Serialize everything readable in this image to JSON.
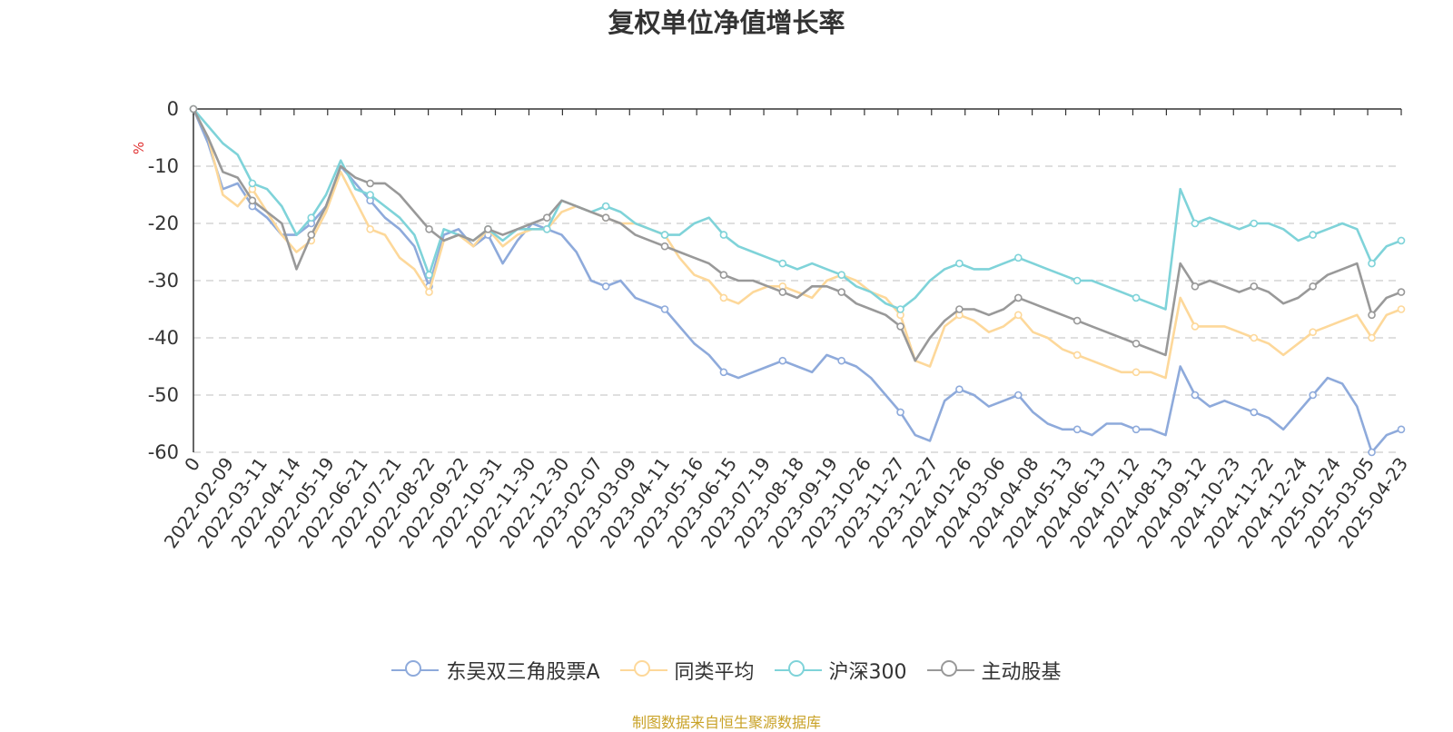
{
  "chart_data": {
    "type": "line",
    "title": "复权单位净值增长率",
    "ylabel": "%",
    "ylim": [
      -60,
      0
    ],
    "yticks": [
      0,
      -10,
      -20,
      -30,
      -40,
      -50,
      -60
    ],
    "xticks": [
      "0",
      "2022-02-09",
      "2022-03-11",
      "2022-04-14",
      "2022-05-19",
      "2022-06-21",
      "2022-07-21",
      "2022-08-22",
      "2022-09-22",
      "2022-10-31",
      "2022-11-30",
      "2022-12-30",
      "2023-02-07",
      "2023-03-09",
      "2023-04-11",
      "2023-05-16",
      "2023-06-15",
      "2023-07-19",
      "2023-08-18",
      "2023-09-19",
      "2023-10-26",
      "2023-11-27",
      "2023-12-27",
      "2024-01-26",
      "2024-03-06",
      "2024-04-08",
      "2024-05-13",
      "2024-06-13",
      "2024-07-12",
      "2024-08-13",
      "2024-09-12",
      "2024-10-23",
      "2024-11-22",
      "2024-12-24",
      "2025-01-24",
      "2025-03-05",
      "2025-04-23"
    ],
    "grid": true,
    "legend_position": "bottom",
    "series": [
      {
        "name": "东吴双三角股票A",
        "color": "#8eaadb",
        "values": [
          0,
          -6,
          -14,
          -13,
          -17,
          -19,
          -22,
          -22,
          -20,
          -17,
          -10,
          -13,
          -16,
          -19,
          -21,
          -24,
          -31,
          -22,
          -21,
          -24,
          -22,
          -27,
          -23,
          -20,
          -21,
          -22,
          -25,
          -30,
          -31,
          -30,
          -33,
          -34,
          -35,
          -38,
          -41,
          -43,
          -46,
          -47,
          -46,
          -45,
          -44,
          -45,
          -46,
          -43,
          -44,
          -45,
          -47,
          -50,
          -53,
          -57,
          -58,
          -51,
          -49,
          -50,
          -52,
          -51,
          -50,
          -53,
          -55,
          -56,
          -56,
          -57,
          -55,
          -55,
          -56,
          -56,
          -57,
          -45,
          -50,
          -52,
          -51,
          -52,
          -53,
          -54,
          -56,
          -53,
          -50,
          -47,
          -48,
          -52,
          -60,
          -57,
          -56
        ]
      },
      {
        "name": "同类平均",
        "color": "#fdd89a",
        "values": [
          0,
          -5,
          -15,
          -17,
          -14,
          -18,
          -22,
          -25,
          -23,
          -18,
          -11,
          -16,
          -21,
          -22,
          -26,
          -28,
          -32,
          -23,
          -22,
          -24,
          -21,
          -24,
          -22,
          -21,
          -21,
          -18,
          -17,
          -18,
          -19,
          -20,
          -20,
          -21,
          -22,
          -26,
          -29,
          -30,
          -33,
          -34,
          -32,
          -31,
          -31,
          -32,
          -33,
          -30,
          -29,
          -30,
          -32,
          -33,
          -36,
          -44,
          -45,
          -38,
          -36,
          -37,
          -39,
          -38,
          -36,
          -39,
          -40,
          -42,
          -43,
          -44,
          -45,
          -46,
          -46,
          -46,
          -47,
          -33,
          -38,
          -38,
          -38,
          -39,
          -40,
          -41,
          -43,
          -41,
          -39,
          -38,
          -37,
          -36,
          -40,
          -36,
          -35
        ]
      },
      {
        "name": "沪深300",
        "color": "#7fd3d9",
        "values": [
          0,
          -3,
          -6,
          -8,
          -13,
          -14,
          -17,
          -22,
          -19,
          -15,
          -9,
          -14,
          -15,
          -17,
          -19,
          -22,
          -29,
          -21,
          -22,
          -23,
          -21,
          -23,
          -21,
          -21,
          -21,
          -16,
          -17,
          -18,
          -17,
          -18,
          -20,
          -21,
          -22,
          -22,
          -20,
          -19,
          -22,
          -24,
          -25,
          -26,
          -27,
          -28,
          -27,
          -28,
          -29,
          -31,
          -32,
          -34,
          -35,
          -33,
          -30,
          -28,
          -27,
          -28,
          -28,
          -27,
          -26,
          -27,
          -28,
          -29,
          -30,
          -30,
          -31,
          -32,
          -33,
          -34,
          -35,
          -14,
          -20,
          -19,
          -20,
          -21,
          -20,
          -20,
          -21,
          -23,
          -22,
          -21,
          -20,
          -21,
          -27,
          -24,
          -23
        ]
      },
      {
        "name": "主动股基",
        "color": "#999999",
        "values": [
          0,
          -5,
          -11,
          -12,
          -16,
          -18,
          -20,
          -28,
          -22,
          -17,
          -10,
          -12,
          -13,
          -13,
          -15,
          -18,
          -21,
          -23,
          -22,
          -23,
          -21,
          -22,
          -21,
          -20,
          -19,
          -16,
          -17,
          -18,
          -19,
          -20,
          -22,
          -23,
          -24,
          -25,
          -26,
          -27,
          -29,
          -30,
          -30,
          -31,
          -32,
          -33,
          -31,
          -31,
          -32,
          -34,
          -35,
          -36,
          -38,
          -44,
          -40,
          -37,
          -35,
          -35,
          -36,
          -35,
          -33,
          -34,
          -35,
          -36,
          -37,
          -38,
          -39,
          -40,
          -41,
          -42,
          -43,
          -27,
          -31,
          -30,
          -31,
          -32,
          -31,
          -32,
          -34,
          -33,
          -31,
          -29,
          -28,
          -27,
          -36,
          -33,
          -32
        ]
      }
    ]
  },
  "source_note": "制图数据来自恒生聚源数据库"
}
